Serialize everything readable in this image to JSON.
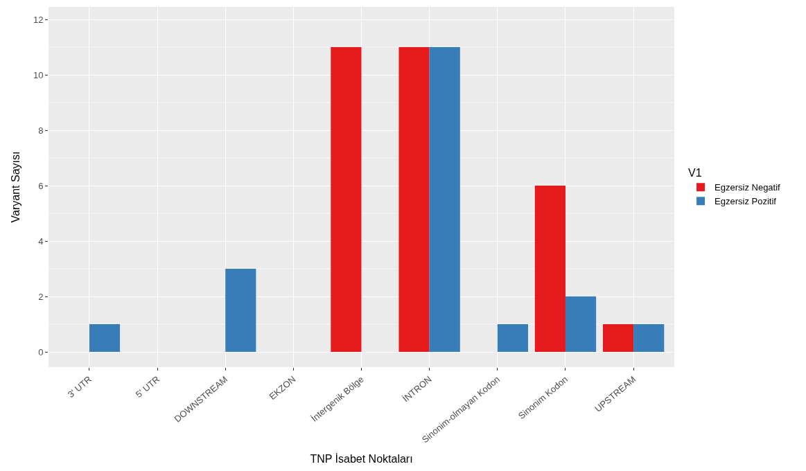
{
  "chart_data": {
    "type": "bar",
    "xlabel": "TNP İsabet Noktaları",
    "ylabel": "Varyant Sayısı",
    "legend_title": "V1",
    "categories": [
      "3' UTR",
      "5' UTR",
      "DOWNSTREAM",
      "EKZON",
      "İntergenik Bölge",
      "İNTRON",
      "Sinonim-olmayan Kodon",
      "Sinonim Kodon",
      "UPSTREAM"
    ],
    "series": [
      {
        "name": "Egzersiz Negatif",
        "color": "#e41a1c",
        "values": [
          0,
          0,
          0,
          0,
          11,
          11,
          0,
          6,
          1
        ]
      },
      {
        "name": "Egzersiz Pozitif",
        "color": "#377eb8",
        "values": [
          1,
          0,
          3,
          0,
          0,
          11,
          1,
          2,
          1
        ]
      }
    ],
    "ylim": [
      -0.55,
      12.45
    ],
    "yticks": [
      0,
      2,
      4,
      6,
      8,
      10,
      12
    ],
    "grid": true,
    "legend": "right"
  }
}
